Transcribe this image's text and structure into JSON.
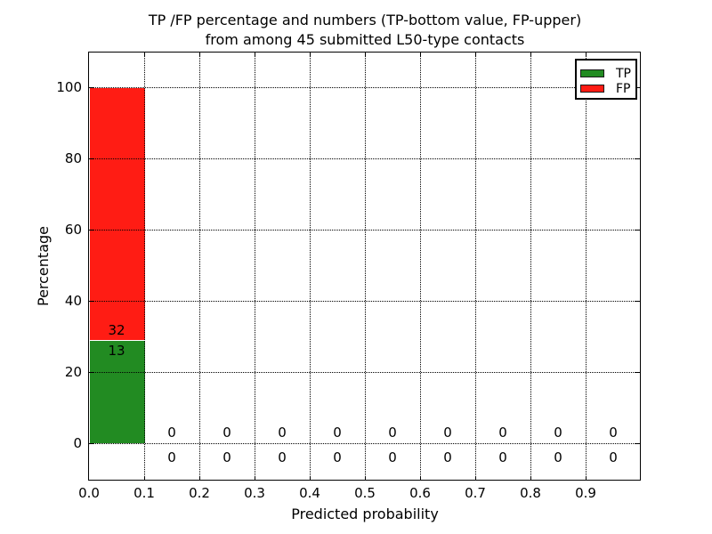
{
  "chart_data": {
    "type": "bar",
    "stacked": true,
    "title_line1": "TP /FP percentage and numbers (TP-bottom value, FP-upper)",
    "title_line2": "from among 45 submitted L50-type contacts",
    "xlabel": "Predicted probability",
    "ylabel": "Percentage",
    "total_contacts": 45,
    "xlim": [
      0.0,
      1.0
    ],
    "ylim": [
      -10.5,
      110
    ],
    "xticks": [
      "0.0",
      "0.1",
      "0.2",
      "0.3",
      "0.4",
      "0.5",
      "0.6",
      "0.7",
      "0.8",
      "0.9"
    ],
    "yticks": [
      "0",
      "20",
      "40",
      "60",
      "80",
      "100"
    ],
    "grid": {
      "style": "dotted",
      "horizontal": true,
      "vertical": true
    },
    "bin_width": 0.1,
    "bin_centers": [
      0.05,
      0.15,
      0.25,
      0.35,
      0.45,
      0.55,
      0.65,
      0.75,
      0.85,
      0.95
    ],
    "series": [
      {
        "name": "TP",
        "color": "#228b22",
        "counts": [
          13,
          0,
          0,
          0,
          0,
          0,
          0,
          0,
          0,
          0
        ]
      },
      {
        "name": "FP",
        "color": "#ff1c14",
        "counts": [
          32,
          0,
          0,
          0,
          0,
          0,
          0,
          0,
          0,
          0
        ]
      }
    ],
    "percentages": {
      "tp_first_bin": 28.9,
      "fp_first_bin": 71.1
    },
    "legend": {
      "position": "upper right",
      "entries": [
        {
          "label": "TP",
          "color": "#228b22"
        },
        {
          "label": "FP",
          "color": "#ff1c14"
        }
      ]
    }
  }
}
